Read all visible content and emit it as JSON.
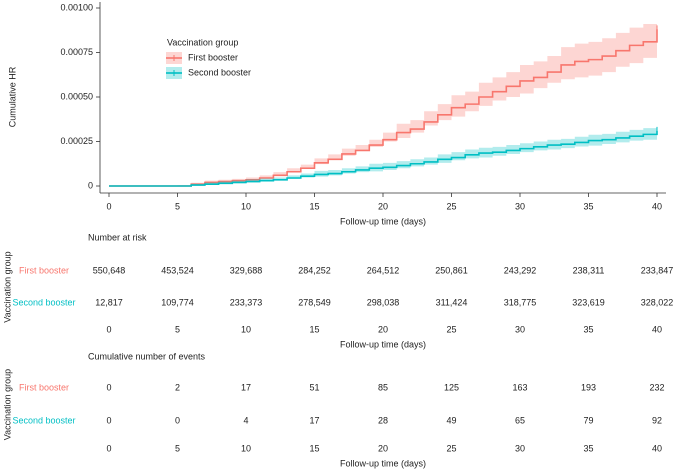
{
  "chart_data": {
    "type": "step",
    "ylabel": "Cumulative HR",
    "xlabel": "Follow-up time (days)",
    "xlim": [
      0,
      40
    ],
    "xticks": [
      0,
      5,
      10,
      15,
      20,
      25,
      30,
      35,
      40
    ],
    "ylim": [
      0,
      0.001
    ],
    "yticks": [
      0,
      0.00025,
      {
        "value": 0.0005,
        "label": "0.00050"
      },
      0.00075,
      {
        "value": 0.001,
        "label": "0.00100"
      }
    ],
    "legend_title": "Vaccination group",
    "legend": "upper left",
    "x": [
      0,
      1,
      2,
      3,
      4,
      5,
      6,
      7,
      8,
      9,
      10,
      11,
      12,
      13,
      14,
      15,
      16,
      17,
      18,
      19,
      20,
      21,
      22,
      23,
      24,
      25,
      26,
      27,
      28,
      29,
      30,
      31,
      32,
      33,
      34,
      35,
      36,
      37,
      38,
      39,
      40
    ],
    "series": [
      {
        "name": "First booster",
        "color": "#F8766D",
        "values": [
          0,
          0,
          0,
          0,
          0,
          0,
          1e-05,
          2e-05,
          2.5e-05,
          3e-05,
          3.5e-05,
          4.5e-05,
          6e-05,
          8e-05,
          0.0001,
          0.00013,
          0.00015,
          0.00018,
          0.0002,
          0.00023,
          0.00026,
          0.0003,
          0.00032,
          0.00036,
          0.0004,
          0.00044,
          0.00046,
          0.0005,
          0.00053,
          0.00056,
          0.00059,
          0.00061,
          0.00064,
          0.00068,
          0.0007,
          0.00071,
          0.00073,
          0.00076,
          0.00079,
          0.00081,
          0.00088
        ],
        "lower": [
          0,
          0,
          0,
          0,
          0,
          0,
          5e-06,
          1e-05,
          1.5e-05,
          2e-05,
          2.5e-05,
          3e-05,
          4.5e-05,
          6.2e-05,
          8e-05,
          0.000105,
          0.000123,
          0.00015,
          0.00017,
          0.0002,
          0.00022,
          0.00025,
          0.00027,
          0.0003,
          0.00034,
          0.00037,
          0.00039,
          0.00042,
          0.00045,
          0.00048,
          0.0005,
          0.00052,
          0.00055,
          0.00058,
          0.0006,
          0.00061,
          0.00062,
          0.00064,
          0.00067,
          0.00069,
          0.00072
        ],
        "upper": [
          0,
          0,
          0,
          0,
          0,
          0,
          1.8e-05,
          3e-05,
          3.5e-05,
          4e-05,
          4.8e-05,
          6e-05,
          7.8e-05,
          0.0001,
          0.00012,
          0.000155,
          0.000178,
          0.00021,
          0.00023,
          0.00026,
          0.0003,
          0.00035,
          0.00037,
          0.00042,
          0.00046,
          0.00051,
          0.00053,
          0.00058,
          0.00061,
          0.00064,
          0.00068,
          0.0007,
          0.00073,
          0.00078,
          0.0008,
          0.00081,
          0.00083,
          0.00086,
          0.00089,
          0.00091,
          0.00091
        ]
      },
      {
        "name": "Second booster",
        "color": "#00BFC4",
        "values": [
          0,
          0,
          0,
          0,
          0,
          0,
          5e-06,
          1e-05,
          1.5e-05,
          2e-05,
          2.5e-05,
          3e-05,
          3.5e-05,
          4.5e-05,
          5.5e-05,
          6.5e-05,
          7e-05,
          8e-05,
          9e-05,
          0.0001,
          0.000105,
          0.000115,
          0.000125,
          0.000135,
          0.00015,
          0.00016,
          0.000175,
          0.000185,
          0.00019,
          0.0002,
          0.00021,
          0.00022,
          0.00023,
          0.000235,
          0.000245,
          0.000255,
          0.00026,
          0.00027,
          0.00028,
          0.00029,
          0.00031
        ],
        "lower": [
          0,
          0,
          0,
          0,
          0,
          0,
          0,
          5e-06,
          1e-05,
          1.2e-05,
          1.5e-05,
          2e-05,
          2.5e-05,
          3.2e-05,
          4e-05,
          4.8e-05,
          5.3e-05,
          6e-05,
          7e-05,
          7.8e-05,
          8.2e-05,
          9e-05,
          0.0001,
          0.00011,
          0.00012,
          0.00013,
          0.000145,
          0.000155,
          0.00016,
          0.00017,
          0.00018,
          0.00019,
          0.0002,
          0.000205,
          0.000213,
          0.000222,
          0.000227,
          0.000236,
          0.000245,
          0.000255,
          0.00026
        ],
        "upper": [
          0,
          0,
          0,
          0,
          0,
          0,
          1.2e-05,
          2e-05,
          2.5e-05,
          3e-05,
          3.8e-05,
          4.2e-05,
          4.8e-05,
          6e-05,
          7e-05,
          8.5e-05,
          9e-05,
          0.0001,
          0.00011,
          0.000125,
          0.00013,
          0.00014,
          0.00015,
          0.00016,
          0.000178,
          0.00019,
          0.000205,
          0.000215,
          0.00022,
          0.00023,
          0.00024,
          0.00025,
          0.00026,
          0.000265,
          0.000277,
          0.000288,
          0.000293,
          0.000305,
          0.000315,
          0.000325,
          0.00037
        ]
      }
    ]
  },
  "tables": [
    {
      "title": "Number at risk",
      "ylabel": "Vaccination group",
      "xlabel": "Follow-up time (days)",
      "xticks": [
        0,
        5,
        10,
        15,
        20,
        25,
        30,
        35,
        40
      ],
      "rows": [
        {
          "name": "First booster",
          "color": "#F8766D",
          "values": [
            "550,648",
            "453,524",
            "329,688",
            "284,252",
            "264,512",
            "250,861",
            "243,292",
            "238,311",
            "233,847"
          ]
        },
        {
          "name": "Second booster",
          "color": "#00BFC4",
          "values": [
            "12,817",
            "109,774",
            "233,373",
            "278,549",
            "298,038",
            "311,424",
            "318,775",
            "323,619",
            "328,022"
          ]
        }
      ]
    },
    {
      "title": "Cumulative number of events",
      "ylabel": "Vaccination group",
      "xlabel": "Follow-up time (days)",
      "xticks": [
        0,
        5,
        10,
        15,
        20,
        25,
        30,
        35,
        40
      ],
      "rows": [
        {
          "name": "First booster",
          "color": "#F8766D",
          "values": [
            0,
            2,
            17,
            51,
            85,
            125,
            163,
            193,
            232
          ]
        },
        {
          "name": "Second booster",
          "color": "#00BFC4",
          "values": [
            0,
            0,
            4,
            17,
            28,
            49,
            65,
            79,
            92
          ]
        }
      ]
    }
  ]
}
